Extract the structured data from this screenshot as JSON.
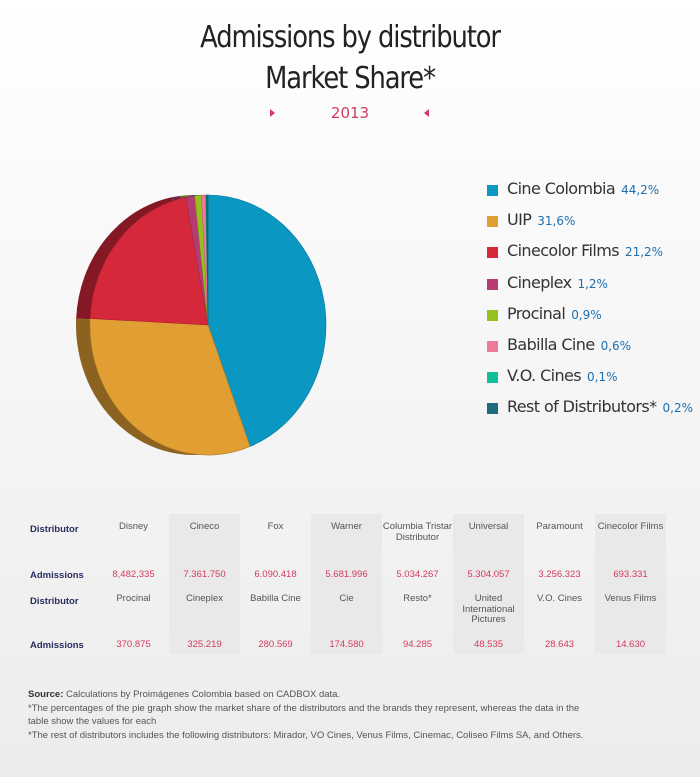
{
  "header": {
    "title_line1": "Admissions by distributor",
    "title_line2": "Market Share*",
    "year": "2013"
  },
  "chart_data": {
    "type": "pie",
    "title": "Admissions by distributor Market Share*",
    "subtitle": "2013",
    "legend_position": "right",
    "slices": [
      {
        "name": "Cine Colombia",
        "label": "44,2%",
        "value": 44.2,
        "color": "#0a97c1"
      },
      {
        "name": "UIP",
        "label": "31,6%",
        "value": 31.6,
        "color": "#e09e33"
      },
      {
        "name": "Cinecolor Films",
        "label": "21,2%",
        "value": 21.2,
        "color": "#d5283b"
      },
      {
        "name": "Cineplex",
        "label": "1,2%",
        "value": 1.2,
        "color": "#b83a72"
      },
      {
        "name": "Procinal",
        "label": "0,9%",
        "value": 0.9,
        "color": "#95c11f"
      },
      {
        "name": "Babilla Cine",
        "label": "0,6%",
        "value": 0.6,
        "color": "#ee7a98"
      },
      {
        "name": "V.O. Cines",
        "label": "0,1%",
        "value": 0.1,
        "color": "#12bf9d"
      },
      {
        "name": "Rest of Distributors*",
        "label": "0,2%",
        "value": 0.2,
        "color": "#1e6b80"
      }
    ]
  },
  "table": {
    "distributor_label": "Distributor",
    "admissions_label": "Admissions",
    "row1_distributors": [
      "Disney",
      "Cineco",
      "Fox",
      "Warner",
      "Columbia Tristar Distributor",
      "Universal",
      "Paramount",
      "Cinecolor Films"
    ],
    "row1_admissions": [
      "8,482,335",
      "7.361.750",
      "6.090.418",
      "5.681.996",
      "5.034.267",
      "5.304.057",
      "3.256.323",
      "693.331"
    ],
    "row2_distributors": [
      "Procinal",
      "Cineplex",
      "Babilla Cine",
      "Cie",
      "Resto*",
      "United International Pictures",
      "V.O. Cines",
      "Venus Films"
    ],
    "row2_admissions": [
      "370.875",
      "325.219",
      "280.569",
      "174.580",
      "94.285",
      "48.535",
      "28.643",
      "14.630"
    ]
  },
  "notes": {
    "source_label": "Source:",
    "source_text": " Calculations by Proimágenes Colombia based on CADBOX data.",
    "note1": "*The percentages of the pie graph show the market share of the distributors and the brands they represent, whereas the data in the table show the values for each",
    "note2": "*The rest of distributors includes the following distributors: Mirador, VO Cines, Venus Films, Cinemac, Coliseo Films SA, and Others."
  }
}
